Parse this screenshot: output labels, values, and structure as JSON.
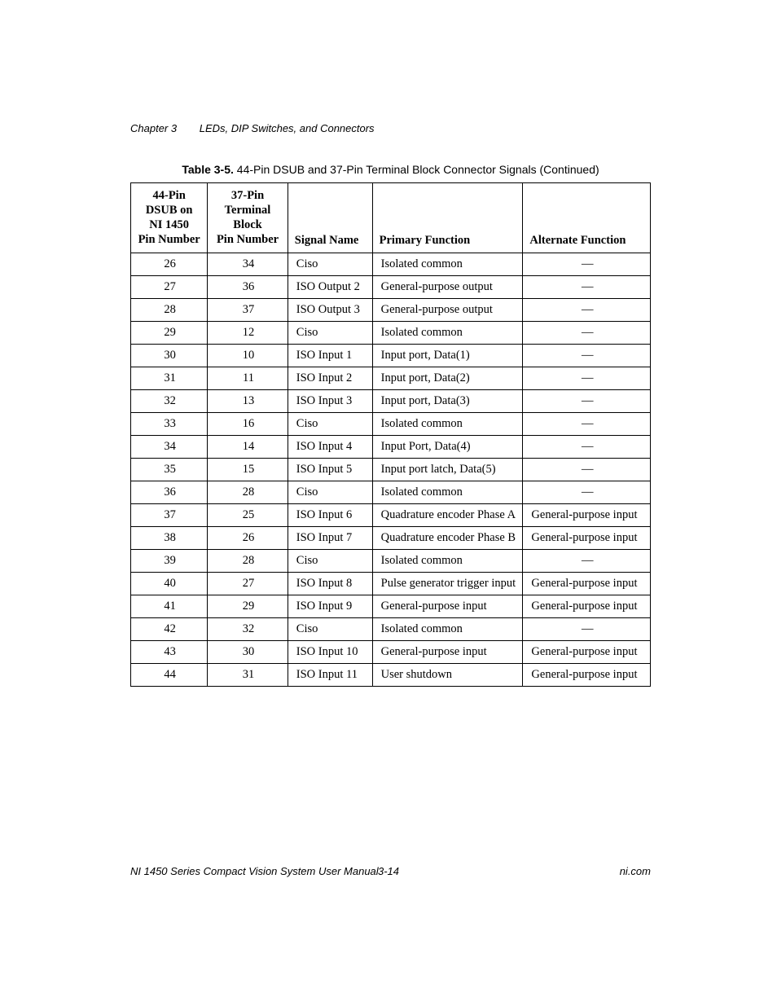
{
  "chapter": {
    "num": "Chapter 3",
    "title": "LEDs, DIP Switches, and Connectors"
  },
  "caption": {
    "label": "Table 3-5.",
    "text": "44-Pin DSUB and 37-Pin Terminal Block Connector Signals (Continued)"
  },
  "table": {
    "columns": {
      "a1": "44-Pin",
      "a2": "DSUB on",
      "a3": "NI 1450",
      "a4": "Pin Number",
      "b1": "37-Pin",
      "b2": "Terminal",
      "b3": "Block",
      "b4": "Pin Number",
      "c": "Signal Name",
      "d": "Primary Function",
      "e": "Alternate Function"
    },
    "rows": [
      {
        "a": "26",
        "b": "34",
        "c": "Ciso",
        "d": "Isolated common",
        "e": "—"
      },
      {
        "a": "27",
        "b": "36",
        "c": "ISO Output 2",
        "d": "General-purpose output",
        "e": "—"
      },
      {
        "a": "28",
        "b": "37",
        "c": "ISO Output 3",
        "d": "General-purpose output",
        "e": "—"
      },
      {
        "a": "29",
        "b": "12",
        "c": "Ciso",
        "d": "Isolated common",
        "e": "—"
      },
      {
        "a": "30",
        "b": "10",
        "c": "ISO Input 1",
        "d": "Input port, Data(1)",
        "e": "—"
      },
      {
        "a": "31",
        "b": "11",
        "c": "ISO Input 2",
        "d": "Input port, Data(2)",
        "e": "—"
      },
      {
        "a": "32",
        "b": "13",
        "c": "ISO Input 3",
        "d": "Input port, Data(3)",
        "e": "—"
      },
      {
        "a": "33",
        "b": "16",
        "c": "Ciso",
        "d": "Isolated common",
        "e": "—"
      },
      {
        "a": "34",
        "b": "14",
        "c": "ISO Input 4",
        "d": "Input Port, Data(4)",
        "e": "—"
      },
      {
        "a": "35",
        "b": "15",
        "c": "ISO Input 5",
        "d": "Input port latch, Data(5)",
        "e": "—"
      },
      {
        "a": "36",
        "b": "28",
        "c": "Ciso",
        "d": "Isolated common",
        "e": "—"
      },
      {
        "a": "37",
        "b": "25",
        "c": "ISO Input 6",
        "d": "Quadrature encoder Phase A",
        "e": "General-purpose input"
      },
      {
        "a": "38",
        "b": "26",
        "c": "ISO Input 7",
        "d": "Quadrature encoder Phase B",
        "e": "General-purpose input"
      },
      {
        "a": "39",
        "b": "28",
        "c": "Ciso",
        "d": "Isolated common",
        "e": "—"
      },
      {
        "a": "40",
        "b": "27",
        "c": "ISO Input 8",
        "d": "Pulse generator trigger input",
        "e": "General-purpose input"
      },
      {
        "a": "41",
        "b": "29",
        "c": "ISO Input 9",
        "d": "General-purpose input",
        "e": "General-purpose input"
      },
      {
        "a": "42",
        "b": "32",
        "c": "Ciso",
        "d": "Isolated common",
        "e": "—"
      },
      {
        "a": "43",
        "b": "30",
        "c": "ISO Input 10",
        "d": "General-purpose input",
        "e": "General-purpose input"
      },
      {
        "a": "44",
        "b": "31",
        "c": "ISO Input 11",
        "d": "User shutdown",
        "e": "General-purpose input"
      }
    ]
  },
  "footer": {
    "left": "NI 1450 Series Compact Vision System User Manual",
    "center": "3-14",
    "right": "ni.com"
  }
}
